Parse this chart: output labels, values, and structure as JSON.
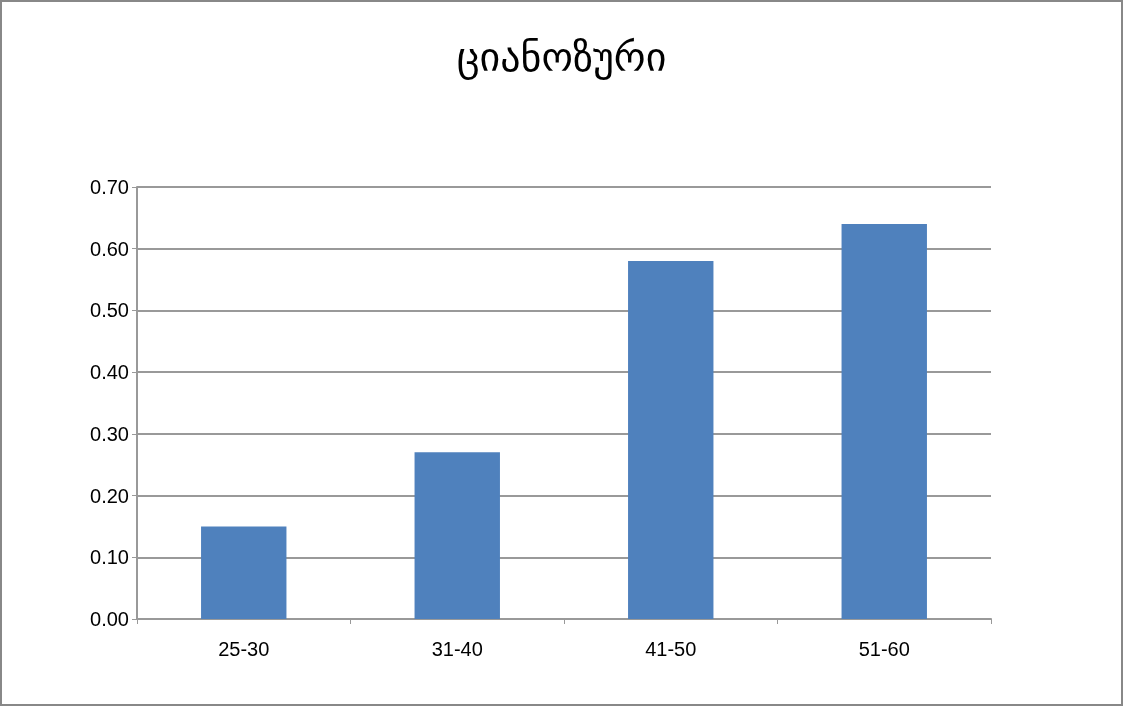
{
  "chart_data": {
    "type": "bar",
    "title": "ციანოზური",
    "categories": [
      "25-30",
      "31-40",
      "41-50",
      "51-60"
    ],
    "values": [
      0.15,
      0.27,
      0.58,
      0.64
    ],
    "color": "#4f81bd",
    "ylim": [
      0,
      0.7
    ],
    "yticks": [
      {
        "value": 0,
        "label": "0.00"
      },
      {
        "value": 0.1,
        "label": "0.10"
      },
      {
        "value": 0.2,
        "label": "0.20"
      },
      {
        "value": 0.3,
        "label": "0.30"
      },
      {
        "value": 0.4,
        "label": "0.40"
      },
      {
        "value": 0.5,
        "label": "0.50"
      },
      {
        "value": 0.6,
        "label": "0.60"
      },
      {
        "value": 0.7,
        "label": "0.70"
      }
    ],
    "grid": true
  }
}
